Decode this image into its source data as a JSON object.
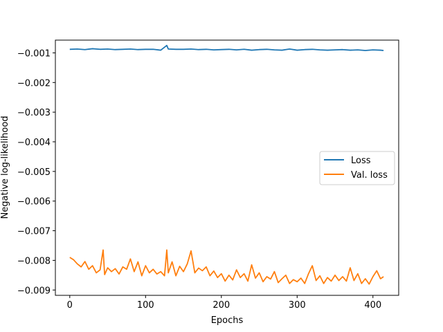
{
  "chart_data": {
    "type": "line",
    "title": "",
    "xlabel": "Epochs",
    "ylabel": "Negative log-likelihood",
    "xlim": [
      -19,
      434
    ],
    "ylim": [
      -0.00918,
      -0.00057
    ],
    "xticks": [
      0,
      100,
      200,
      300,
      400
    ],
    "xtick_labels": [
      "0",
      "100",
      "200",
      "300",
      "400"
    ],
    "yticks": [
      -0.001,
      -0.002,
      -0.003,
      -0.004,
      -0.005,
      -0.006,
      -0.007,
      -0.008,
      -0.009
    ],
    "ytick_labels": [
      "−0.001",
      "−0.002",
      "−0.003",
      "−0.004",
      "−0.005",
      "−0.006",
      "−0.007",
      "−0.008",
      "−0.009"
    ],
    "grid": false,
    "legend_position": "center-right",
    "series": [
      {
        "name": "Loss",
        "color": "#1f77b4",
        "x": [
          0,
          10,
          20,
          30,
          40,
          50,
          60,
          70,
          80,
          90,
          100,
          110,
          120,
          128,
          130,
          140,
          150,
          160,
          170,
          180,
          190,
          200,
          210,
          220,
          230,
          240,
          250,
          260,
          270,
          280,
          290,
          300,
          310,
          320,
          330,
          340,
          350,
          360,
          370,
          380,
          390,
          400,
          410,
          414
        ],
        "y": [
          -0.00088,
          -0.00087,
          -0.00089,
          -0.00086,
          -0.00088,
          -0.00087,
          -0.00089,
          -0.00088,
          -0.00087,
          -0.00089,
          -0.00088,
          -0.00088,
          -0.00091,
          -0.00075,
          -0.00087,
          -0.00088,
          -0.00088,
          -0.00087,
          -0.00089,
          -0.00088,
          -0.0009,
          -0.00089,
          -0.00088,
          -0.0009,
          -0.00088,
          -0.00091,
          -0.00089,
          -0.00088,
          -0.0009,
          -0.00091,
          -0.00087,
          -0.00091,
          -0.00089,
          -0.00088,
          -0.0009,
          -0.00091,
          -0.0009,
          -0.00089,
          -0.00091,
          -0.0009,
          -0.00092,
          -0.0009,
          -0.00091,
          -0.00092
        ]
      },
      {
        "name": "Val. loss",
        "color": "#ff7f0e",
        "x": [
          0,
          5,
          10,
          15,
          20,
          25,
          30,
          35,
          40,
          44,
          46,
          50,
          55,
          60,
          65,
          70,
          75,
          80,
          85,
          90,
          95,
          100,
          105,
          110,
          115,
          120,
          125,
          128,
          130,
          135,
          140,
          145,
          150,
          155,
          160,
          165,
          170,
          175,
          180,
          185,
          190,
          195,
          200,
          205,
          210,
          215,
          220,
          225,
          230,
          235,
          240,
          245,
          250,
          255,
          260,
          265,
          270,
          275,
          280,
          285,
          290,
          295,
          300,
          305,
          310,
          315,
          320,
          325,
          330,
          335,
          340,
          345,
          350,
          355,
          360,
          365,
          370,
          375,
          380,
          385,
          390,
          395,
          400,
          405,
          410,
          414
        ],
        "y": [
          -0.0079,
          -0.00798,
          -0.00812,
          -0.00822,
          -0.00804,
          -0.0083,
          -0.00818,
          -0.00842,
          -0.00832,
          -0.00765,
          -0.00848,
          -0.00825,
          -0.00838,
          -0.00828,
          -0.00846,
          -0.00822,
          -0.0083,
          -0.00795,
          -0.00838,
          -0.00805,
          -0.00852,
          -0.00818,
          -0.00842,
          -0.0083,
          -0.00846,
          -0.00838,
          -0.00852,
          -0.00765,
          -0.00842,
          -0.00805,
          -0.00852,
          -0.0082,
          -0.00838,
          -0.00812,
          -0.00768,
          -0.00842,
          -0.00826,
          -0.00835,
          -0.00822,
          -0.00852,
          -0.00836,
          -0.00858,
          -0.00845,
          -0.0087,
          -0.0085,
          -0.00866,
          -0.00832,
          -0.00858,
          -0.00845,
          -0.0087,
          -0.00815,
          -0.0086,
          -0.00842,
          -0.00872,
          -0.00855,
          -0.00863,
          -0.00838,
          -0.00875,
          -0.00862,
          -0.0085,
          -0.00878,
          -0.00865,
          -0.00872,
          -0.0086,
          -0.00878,
          -0.00845,
          -0.00818,
          -0.00868,
          -0.00852,
          -0.00878,
          -0.00858,
          -0.0087,
          -0.0085,
          -0.00868,
          -0.00855,
          -0.0087,
          -0.00825,
          -0.00868,
          -0.00845,
          -0.00878,
          -0.00862,
          -0.0088,
          -0.00855,
          -0.00835,
          -0.00862,
          -0.00855
        ]
      }
    ]
  }
}
